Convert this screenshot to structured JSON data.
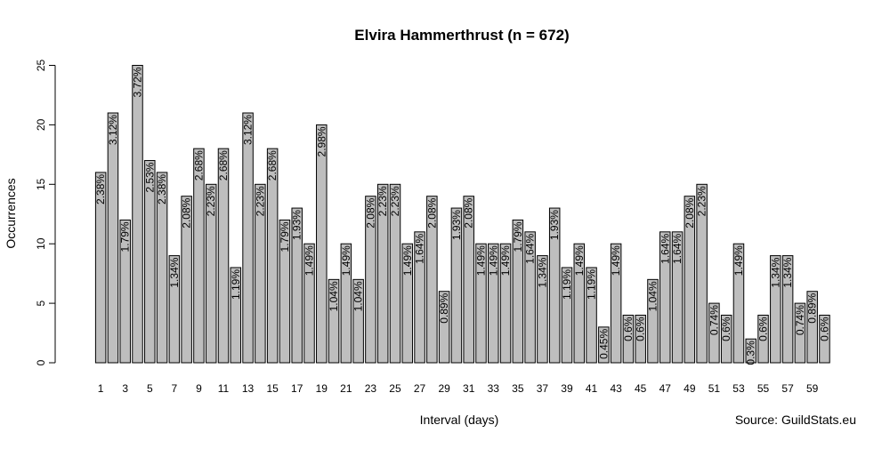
{
  "chart_data": {
    "type": "bar",
    "title": "Elvira Hammerthrust (n = 672)",
    "xlabel": "Interval (days)",
    "ylabel": "Occurrences",
    "source": "Source: GuildStats.eu",
    "ylim": [
      0,
      25
    ],
    "yticks": [
      0,
      5,
      10,
      15,
      20,
      25
    ],
    "categories": [
      "1",
      "2",
      "3",
      "4",
      "5",
      "6",
      "7",
      "8",
      "9",
      "10",
      "11",
      "12",
      "13",
      "14",
      "15",
      "16",
      "17",
      "18",
      "19",
      "20",
      "21",
      "22",
      "23",
      "24",
      "25",
      "26",
      "27",
      "28",
      "29",
      "30",
      "31",
      "32",
      "33",
      "34",
      "35",
      "36",
      "37",
      "38",
      "39",
      "40",
      "41",
      "42",
      "43",
      "44",
      "45",
      "46",
      "47",
      "48",
      "49",
      "50",
      "51",
      "52",
      "53",
      "54",
      "55",
      "56",
      "57",
      "58",
      "59",
      "60"
    ],
    "xtick_labels": [
      "1",
      "3",
      "5",
      "7",
      "9",
      "11",
      "13",
      "15",
      "17",
      "19",
      "21",
      "23",
      "25",
      "27",
      "29",
      "31",
      "33",
      "35",
      "37",
      "39",
      "41",
      "43",
      "45",
      "47",
      "49",
      "51",
      "53",
      "55",
      "57",
      "59"
    ],
    "values": [
      16,
      21,
      12,
      25,
      17,
      16,
      9,
      14,
      18,
      15,
      18,
      8,
      21,
      15,
      18,
      12,
      13,
      10,
      20,
      7,
      10,
      7,
      14,
      15,
      15,
      10,
      11,
      14,
      6,
      13,
      14,
      10,
      10,
      10,
      12,
      11,
      9,
      13,
      8,
      10,
      8,
      3,
      10,
      4,
      4,
      7,
      11,
      11,
      14,
      15,
      5,
      4,
      10,
      2,
      4,
      9,
      9,
      5,
      6,
      4
    ],
    "labels": [
      "2.38%",
      "3.12%",
      "1.79%",
      "3.72%",
      "2.53%",
      "2.38%",
      "1.34%",
      "2.08%",
      "2.68%",
      "2.23%",
      "2.68%",
      "1.19%",
      "3.12%",
      "2.23%",
      "2.68%",
      "1.79%",
      "1.93%",
      "1.49%",
      "2.98%",
      "1.04%",
      "1.49%",
      "1.04%",
      "2.08%",
      "2.23%",
      "2.23%",
      "1.49%",
      "1.64%",
      "2.08%",
      "0.89%",
      "1.93%",
      "2.08%",
      "1.49%",
      "1.49%",
      "1.49%",
      "1.79%",
      "1.64%",
      "1.34%",
      "1.93%",
      "1.19%",
      "1.49%",
      "1.19%",
      "0.45%",
      "1.49%",
      "0.6%",
      "0.6%",
      "1.04%",
      "1.64%",
      "1.64%",
      "2.08%",
      "2.23%",
      "0.74%",
      "0.6%",
      "1.49%",
      "0.3%",
      "0.6%",
      "1.34%",
      "1.34%",
      "0.74%",
      "0.89%",
      "0.6%"
    ],
    "bar_color": "#bebebe",
    "grid": false,
    "legend": "none"
  }
}
